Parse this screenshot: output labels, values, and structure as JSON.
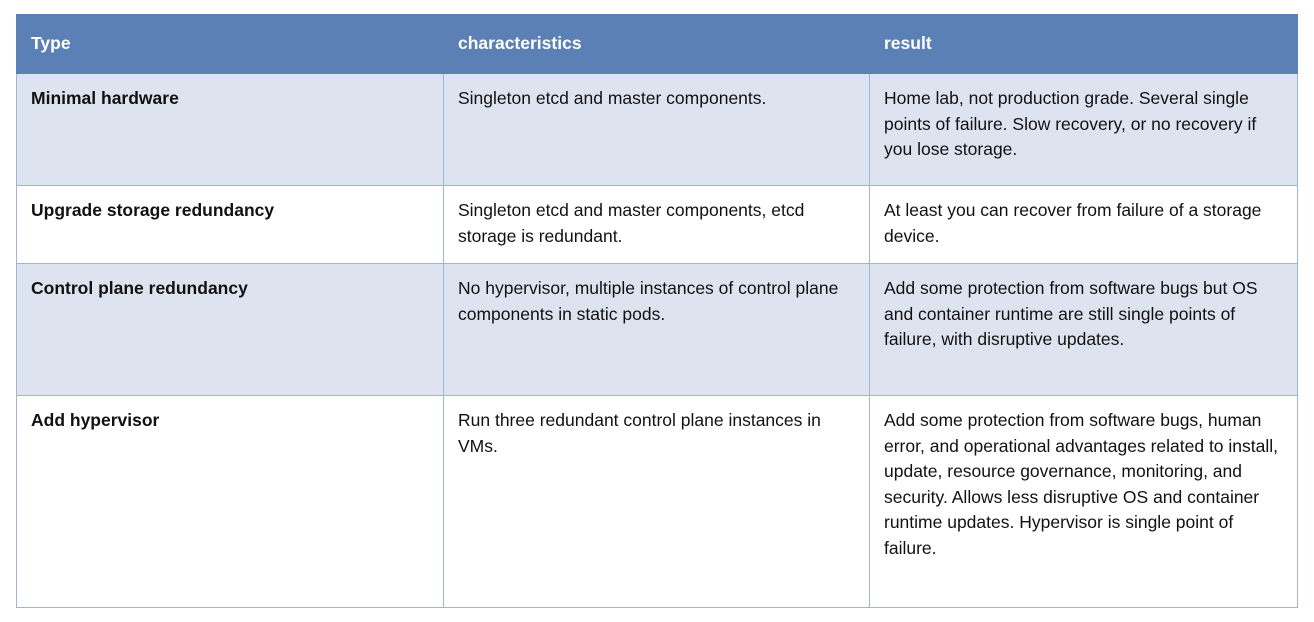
{
  "table": {
    "headers": [
      "Type",
      "characteristics",
      "result"
    ],
    "header_color": "#5a80b6",
    "shaded_row_color": "#dde4f0",
    "rows": [
      {
        "type": "Minimal hardware",
        "characteristics": "Singleton etcd and master components.",
        "result": "Home lab, not production grade. Several single points of failure. Slow recovery, or no recovery if you lose storage."
      },
      {
        "type": "Upgrade storage redundancy",
        "characteristics": "Singleton etcd and master components, etcd storage is redundant.",
        "result": "At least you can recover from failure of a storage device."
      },
      {
        "type": "Control plane redundancy",
        "characteristics": "No hypervisor, multiple instances of control plane components in static pods.",
        "result": "Add some protection from software bugs but OS and container runtime are still single points of failure, with disruptive updates."
      },
      {
        "type": "Add hypervisor",
        "characteristics": "Run three redundant control plane instances in VMs.",
        "result": "Add some protection from software bugs, human error, and operational advantages related to install, update, resource governance, monitoring, and security. Allows less disruptive OS and container runtime updates. Hypervisor is single point of failure."
      }
    ]
  }
}
